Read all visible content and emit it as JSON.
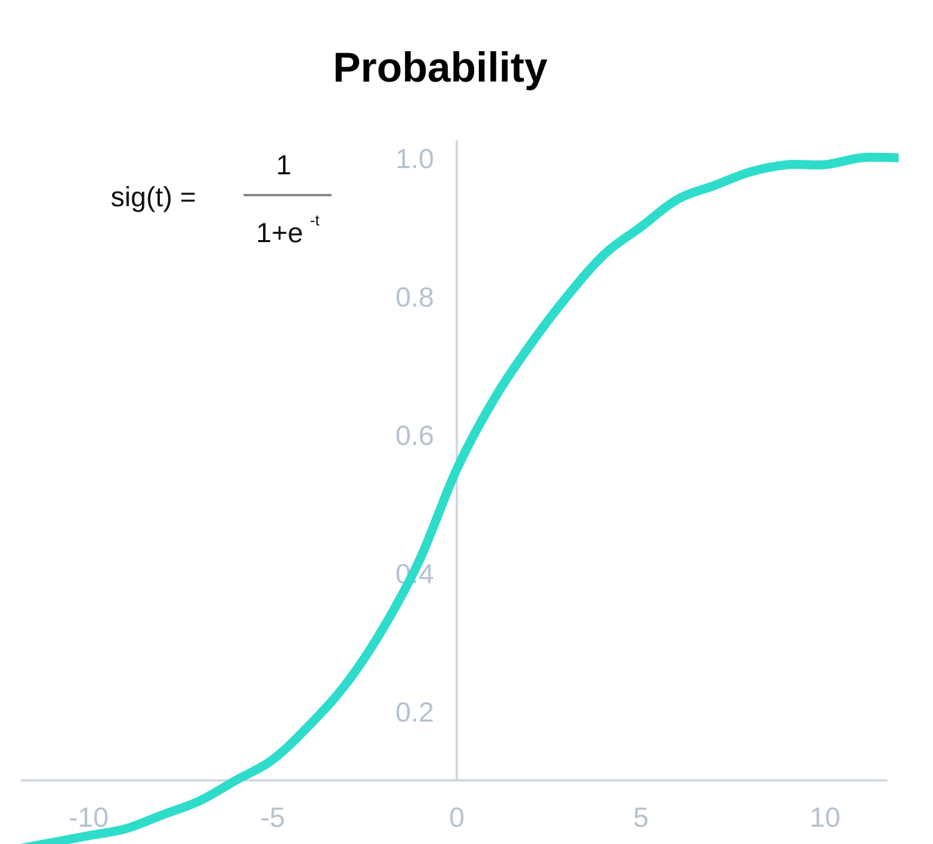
{
  "chart_data": {
    "type": "line",
    "title": "Probability",
    "xlabel": "",
    "ylabel": "",
    "xlim": [
      -12.3,
      12.3
    ],
    "ylim": [
      0.0,
      1.0
    ],
    "x_ticks": [
      -10,
      -5,
      0,
      5,
      10
    ],
    "x_tick_labels": [
      "-10",
      "-5",
      "0",
      "5",
      "10"
    ],
    "y_ticks": [
      0.2,
      0.4,
      0.6,
      0.8,
      1.0
    ],
    "y_tick_labels": [
      "0.2",
      "0.4",
      "0.6",
      "0.8",
      "1.0"
    ],
    "grid": false,
    "series": [
      {
        "color": "#2edccb",
        "x": [
          -12,
          -11,
          -10,
          -9,
          -8,
          -7,
          -6,
          -5,
          -4,
          -3,
          -2,
          -1,
          0,
          1,
          2,
          3,
          4,
          5,
          6,
          7,
          8,
          9,
          10,
          11,
          12
        ],
        "y": [
          0.0,
          0.01,
          0.02,
          0.03,
          0.05,
          0.07,
          0.1,
          0.13,
          0.18,
          0.24,
          0.32,
          0.42,
          0.55,
          0.65,
          0.73,
          0.8,
          0.86,
          0.9,
          0.94,
          0.96,
          0.98,
          0.99,
          0.99,
          1.0,
          1.0
        ]
      }
    ],
    "annotation": {
      "lhs": "sig(t) =",
      "numerator": "1",
      "denominator": "1+e",
      "exponent": "-t"
    }
  },
  "colors": {
    "curve": "#2edccb",
    "axis": "#ccd3dd",
    "tick_text": "#b6c0cf",
    "title": "#000000",
    "formula_bar": "#777777"
  }
}
